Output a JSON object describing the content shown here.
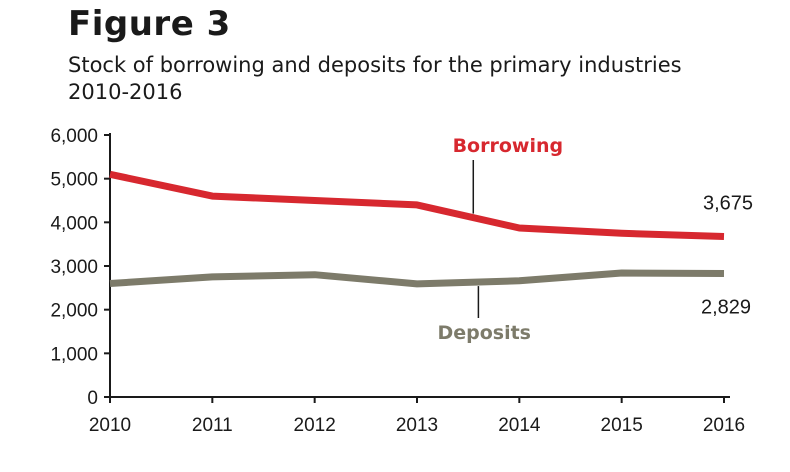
{
  "figure": {
    "title": "Figure 3",
    "subtitle": "Stock of borrowing and deposits for the primary industries 2010-2016"
  },
  "colors": {
    "borrowing": "#d7282f",
    "deposits": "#7d7b6a",
    "axis": "#1a1a1a"
  },
  "chart_data": {
    "type": "line",
    "title": "Stock of borrowing and deposits for the primary industries 2010-2016",
    "xlabel": "",
    "ylabel": "",
    "x": [
      "2010",
      "2011",
      "2012",
      "2013",
      "2014",
      "2015",
      "2016"
    ],
    "ylim": [
      0,
      6000
    ],
    "yticks": [
      0,
      1000,
      2000,
      3000,
      4000,
      5000,
      6000
    ],
    "ytick_labels": [
      "0",
      "1,000",
      "2,000",
      "3,000",
      "4,000",
      "5,000",
      "6,000"
    ],
    "grid": false,
    "legend": "inline labels",
    "series": [
      {
        "name": "Borrowing",
        "color": "#d7282f",
        "values": [
          5100,
          4600,
          4500,
          4400,
          3870,
          3750,
          3675
        ],
        "end_label": "3,675"
      },
      {
        "name": "Deposits",
        "color": "#7d7b6a",
        "values": [
          2600,
          2750,
          2800,
          2590,
          2660,
          2840,
          2829
        ],
        "end_label": "2,829"
      }
    ]
  }
}
